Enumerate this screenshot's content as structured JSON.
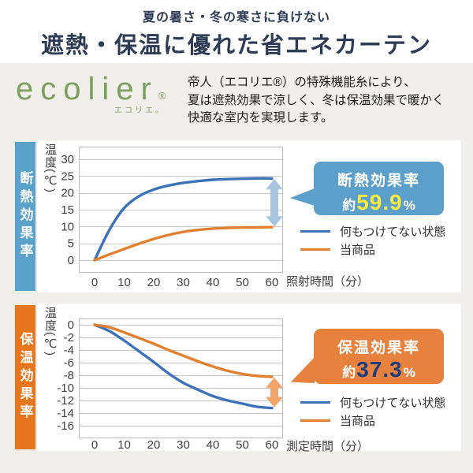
{
  "header": {
    "subtitle": "夏の暑さ・冬の寒さに負けない",
    "title": "遮熱・保温に優れた省エネカーテン"
  },
  "brand": {
    "logo_text": "ecolier",
    "logo_reg_mark": "®",
    "logo_kana": "エコリエ。",
    "description_lines": [
      "帝人（エコリエ®）の特殊機能糸により、",
      "夏は遮熱効果で涼しく、冬は保温効果で暖かく",
      "快適な室内を実現します。"
    ]
  },
  "colors": {
    "title_navy": "#2e3b55",
    "logo_green": "#7e9e5e",
    "page_bg": "#f0efeb",
    "panel_bg": "#ffffff",
    "grid_line": "#c9c9c9",
    "plot_border": "#bdbdbd",
    "tick_text": "#3f3f3f"
  },
  "chart_data": [
    {
      "id": "insulation",
      "type": "line",
      "section_label": "断熱効果率",
      "section_color": "#5aa2cc",
      "ylabel": "温度(℃)",
      "xlabel": "照射時間（分）",
      "x": [
        0,
        5,
        10,
        15,
        20,
        25,
        30,
        35,
        40,
        45,
        50,
        55,
        60
      ],
      "xticks": [
        0,
        10,
        20,
        30,
        40,
        50,
        60
      ],
      "yticks": [
        30,
        25,
        20,
        15,
        10,
        5,
        0
      ],
      "ylim": [
        0,
        30
      ],
      "grid": true,
      "legend_position": "right",
      "series": [
        {
          "name": "何もつけてない状態",
          "color": "#3d72b8",
          "values": [
            0,
            9,
            15.5,
            19,
            21,
            22.2,
            23,
            23.5,
            23.9,
            24.1,
            24.2,
            24.3,
            24.3
          ]
        },
        {
          "name": "当商品",
          "color": "#e2802f",
          "values": [
            0,
            1.7,
            3.3,
            4.9,
            6.3,
            7.5,
            8.4,
            9.0,
            9.4,
            9.6,
            9.7,
            9.75,
            9.8
          ]
        }
      ],
      "diff_arrow": {
        "color": "#a8c5e0",
        "at_x": 60,
        "between": [
          "何もつけてない状態",
          "当商品"
        ]
      },
      "callout": {
        "title": "断熱効果率",
        "prefix": "約",
        "value": "59.9",
        "suffix": "%",
        "bg": "#5c9fcb",
        "value_color": "#f6ea3e"
      }
    },
    {
      "id": "heat-retention",
      "type": "line",
      "section_label": "保温効果率",
      "section_color": "#e6761f",
      "ylabel": "温度(℃)",
      "xlabel": "測定時間（分）",
      "x": [
        0,
        5,
        10,
        15,
        20,
        25,
        30,
        35,
        40,
        45,
        50,
        55,
        60
      ],
      "xticks": [
        0,
        10,
        20,
        30,
        40,
        50,
        60
      ],
      "yticks": [
        0,
        -2,
        -4,
        -6,
        -8,
        -10,
        -12,
        -14,
        -16
      ],
      "ylim": [
        -16,
        0
      ],
      "grid": true,
      "legend_position": "right",
      "series": [
        {
          "name": "何もつけてない状態",
          "color": "#3d72b8",
          "values": [
            0,
            -1.0,
            -2.5,
            -4.2,
            -5.9,
            -7.7,
            -9.2,
            -10.3,
            -11.3,
            -12.0,
            -12.5,
            -13.0,
            -13.2
          ]
        },
        {
          "name": "当商品",
          "color": "#e2802f",
          "values": [
            0,
            -0.4,
            -1.2,
            -2.1,
            -3.0,
            -4.0,
            -4.9,
            -5.8,
            -6.6,
            -7.3,
            -7.8,
            -8.1,
            -8.25
          ]
        }
      ],
      "diff_arrow": {
        "color": "#f3a469",
        "at_x": 60,
        "between": [
          "当商品",
          "何もつけてない状態"
        ]
      },
      "callout": {
        "title": "保温効果率",
        "prefix": "約",
        "value": "37.3",
        "suffix": "%",
        "bg": "#e6823d",
        "value_color": "#1d3d7d"
      }
    }
  ]
}
